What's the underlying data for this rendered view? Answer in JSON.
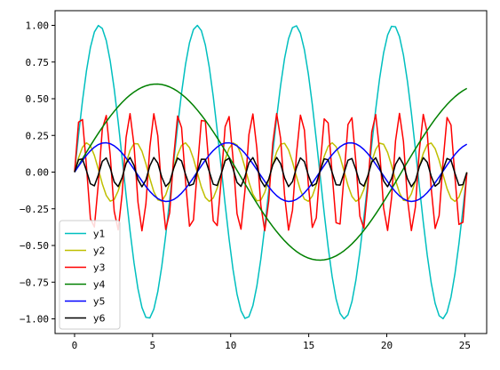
{
  "chart_data": {
    "type": "line",
    "title": "",
    "xlabel": "",
    "ylabel": "",
    "xlim": [
      -1.25,
      26.4
    ],
    "ylim": [
      -1.1,
      1.1
    ],
    "x_range": [
      0,
      25.13
    ],
    "x_ticks": [
      0,
      5,
      10,
      15,
      20,
      25
    ],
    "y_ticks": [
      -1.0,
      -0.75,
      -0.5,
      -0.25,
      0.0,
      0.25,
      0.5,
      0.75,
      1.0
    ],
    "x_tick_labels": [
      "0",
      "5",
      "10",
      "15",
      "20",
      "25"
    ],
    "y_tick_labels": [
      "−1.00",
      "−0.75",
      "−0.50",
      "−0.25",
      "0.00",
      "0.25",
      "0.50",
      "0.75",
      "1.00"
    ],
    "grid": false,
    "legend": {
      "placement": "lower-left"
    },
    "series": [
      {
        "name": "y1",
        "color": "#00bfbf",
        "amplitude": 1.0,
        "frequency": 1.0,
        "samples": 100,
        "values_desc": "sin(x)"
      },
      {
        "name": "y2",
        "color": "#bfbf00",
        "amplitude": 0.2,
        "frequency": 2.0,
        "samples": 100,
        "values_desc": "0.2*sin(2x)"
      },
      {
        "name": "y3",
        "color": "#ff0000",
        "amplitude": 0.4,
        "frequency": 4.0,
        "samples": 100,
        "values_desc": "0.4*sin(4x)"
      },
      {
        "name": "y4",
        "color": "#008000",
        "amplitude": 0.6,
        "frequency": 0.3,
        "samples": 100,
        "values_desc": "0.6*sin(0.3x)"
      },
      {
        "name": "y5",
        "color": "#0000ff",
        "amplitude": 0.2,
        "frequency": 0.8,
        "samples": 100,
        "values_desc": "0.2*sin(0.8x)"
      },
      {
        "name": "y6",
        "color": "#000000",
        "amplitude": 0.1,
        "frequency": 4.0,
        "samples": 100,
        "values_desc": "0.1*sin(4x)"
      }
    ]
  }
}
